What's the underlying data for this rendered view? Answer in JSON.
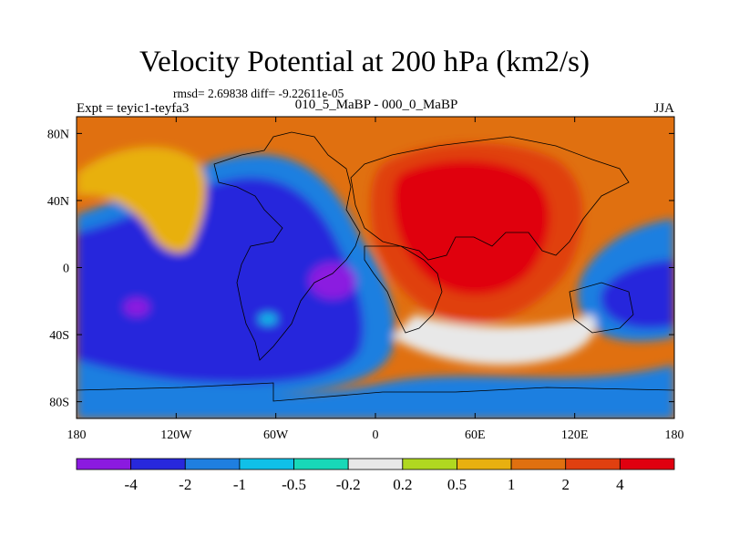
{
  "chart_data": {
    "type": "heatmap",
    "title": "Velocity Potential at 200 hPa (km2/s)",
    "stats": "rmsd= 2.69838 diff= -9.22611e-05",
    "left_label": "Expt = teyic1-teyfa3",
    "center_label": "010_5_MaBP - 000_0_MaBP",
    "right_label": "JJA",
    "x_ticks": [
      {
        "value": -180,
        "label": "180"
      },
      {
        "value": -120,
        "label": "120W"
      },
      {
        "value": -60,
        "label": "60W"
      },
      {
        "value": 0,
        "label": "0"
      },
      {
        "value": 60,
        "label": "60E"
      },
      {
        "value": 120,
        "label": "120E"
      },
      {
        "value": 180,
        "label": "180"
      }
    ],
    "y_ticks": [
      {
        "value": 80,
        "label": "80N"
      },
      {
        "value": 40,
        "label": "40N"
      },
      {
        "value": 0,
        "label": "0"
      },
      {
        "value": -40,
        "label": "40S"
      },
      {
        "value": -80,
        "label": "80S"
      }
    ],
    "xlim": [
      -180,
      180
    ],
    "ylim": [
      -90,
      90
    ],
    "levels": [
      "-4",
      "-2",
      "-1",
      "-0.5",
      "-0.2",
      "0.2",
      "0.5",
      "1",
      "2",
      "4"
    ],
    "colors": [
      "#8b1ae0",
      "#2828dc",
      "#1f7fe0",
      "#10c0e8",
      "#18d8b8",
      "#e8e8e8",
      "#b0d820",
      "#e8b010",
      "#e07010",
      "#e04010",
      "#e00010"
    ],
    "regions": [
      {
        "lon": -145,
        "lat": -30,
        "level": -4
      },
      {
        "lon": -25,
        "lat": -10,
        "level": -4
      },
      {
        "lon": -100,
        "lat": -15,
        "level": -2
      },
      {
        "lon": 150,
        "lat": -15,
        "level": -2
      },
      {
        "lon": 20,
        "lat": -60,
        "level": 0.5
      },
      {
        "lon": 70,
        "lat": 30,
        "level": 4
      },
      {
        "lon": -135,
        "lat": 35,
        "level": 2
      },
      {
        "lon": 0,
        "lat": 70,
        "level": 2
      }
    ]
  }
}
